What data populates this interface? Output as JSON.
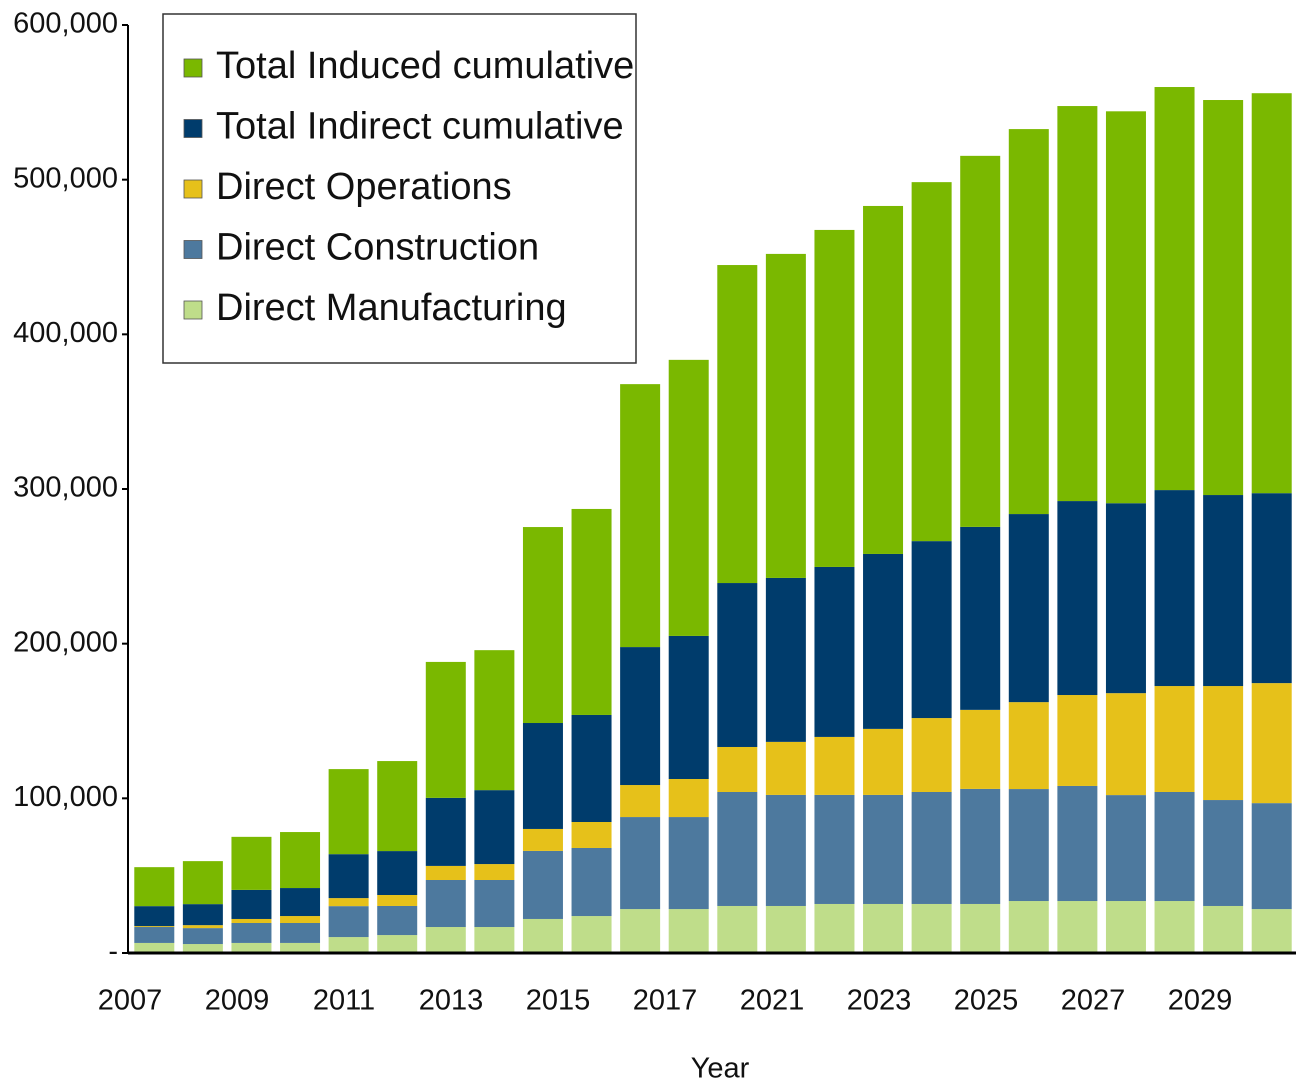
{
  "chart_data": {
    "type": "stacked_bar",
    "x_label": "Year",
    "categories": [
      "2007",
      null,
      "2009",
      null,
      "2011",
      null,
      "2013",
      null,
      "2015",
      null,
      "2017",
      null,
      "2021",
      null,
      "2023",
      null,
      "2025",
      null,
      "2027",
      null,
      "2029",
      null,
      null,
      null
    ],
    "series": [
      {
        "name": "Direct Manufacturing",
        "color": "#bfdd8a",
        "values": [
          6500,
          5800,
          6500,
          6500,
          10300,
          11600,
          16800,
          16800,
          22000,
          23900,
          28400,
          28400,
          30400,
          30400,
          31700,
          31700,
          31700,
          31700,
          33600,
          33600,
          33600,
          33600,
          30400,
          28400
        ]
      },
      {
        "name": "Direct Construction",
        "color": "#4d799e",
        "values": [
          10300,
          10300,
          12900,
          12900,
          20000,
          18800,
          30400,
          30400,
          44000,
          44000,
          59500,
          59500,
          73700,
          71800,
          70500,
          70500,
          72400,
          74400,
          72400,
          74400,
          68500,
          70500,
          68500,
          68500
        ]
      },
      {
        "name": "Direct Operations",
        "color": "#e6c11a",
        "values": [
          600,
          1900,
          2600,
          4500,
          5200,
          7100,
          9100,
          10300,
          14200,
          16800,
          20700,
          24600,
          29100,
          34300,
          37500,
          42700,
          47800,
          51100,
          56200,
          58800,
          65900,
          68500,
          73700,
          77600
        ]
      },
      {
        "name": "Total Indirect cumulative",
        "color": "#003c6c",
        "values": [
          12900,
          13600,
          18800,
          18100,
          28400,
          28400,
          44000,
          47800,
          68500,
          69200,
          89200,
          92500,
          106000,
          106000,
          109900,
          113100,
          114400,
          118300,
          121600,
          125400,
          122800,
          126700,
          123500,
          122800
        ]
      },
      {
        "name": "Total Induced cumulative",
        "color": "#7ab800",
        "values": [
          25200,
          27800,
          34300,
          36200,
          55000,
          58200,
          87900,
          90500,
          126700,
          133200,
          170000,
          178500,
          205600,
          209500,
          217900,
          225000,
          232100,
          239900,
          248900,
          255400,
          253400,
          260600,
          255400,
          258600
        ]
      }
    ],
    "ylim": [
      0,
      600000
    ],
    "yticks": [
      {
        "value": 0,
        "label": "-"
      },
      {
        "value": 100000,
        "label": "100,000"
      },
      {
        "value": 200000,
        "label": "200,000"
      },
      {
        "value": 300000,
        "label": "300,000"
      },
      {
        "value": 400000,
        "label": "400,000"
      },
      {
        "value": 500000,
        "label": "500,000"
      },
      {
        "value": 600000,
        "label": "600,000"
      }
    ],
    "legend_position": "upper left"
  }
}
